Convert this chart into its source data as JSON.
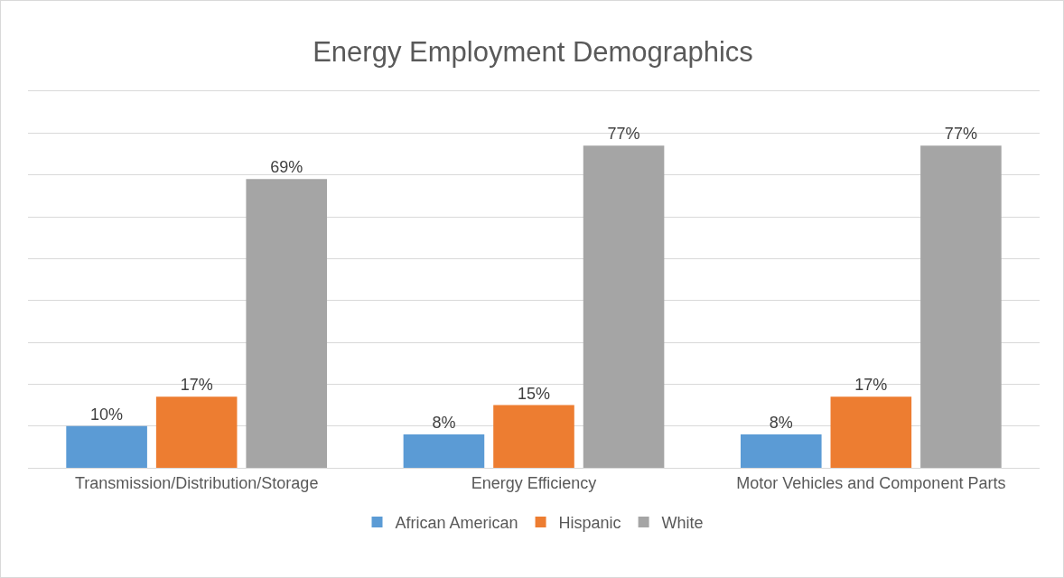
{
  "chart_data": {
    "type": "bar",
    "title": "Energy Employment Demographics",
    "categories": [
      "Transmission/Distribution/Storage",
      "Energy Efficiency",
      "Motor Vehicles and Component Parts"
    ],
    "series": [
      {
        "name": "African American",
        "color": "#5b9bd5",
        "values": [
          10,
          8,
          8
        ],
        "value_labels": [
          "10%",
          "8%",
          "8%"
        ]
      },
      {
        "name": "Hispanic",
        "color": "#ed7d31",
        "values": [
          17,
          15,
          17
        ],
        "value_labels": [
          "17%",
          "15%",
          "17%"
        ]
      },
      {
        "name": "White",
        "color": "#a5a5a5",
        "values": [
          69,
          77,
          77
        ],
        "value_labels": [
          "69%",
          "77%",
          "77%"
        ]
      }
    ],
    "ylim": [
      0,
      90
    ],
    "yticks": [
      {
        "value": 0,
        "label": null
      },
      {
        "value": 10,
        "label": null
      },
      {
        "value": 20,
        "label": null
      },
      {
        "value": 30,
        "label": null
      },
      {
        "value": 40,
        "label": null
      },
      {
        "value": 50,
        "label": null
      },
      {
        "value": 60,
        "label": null
      },
      {
        "value": 70,
        "label": null
      },
      {
        "value": 80,
        "label": null
      },
      {
        "value": 90,
        "label": null
      }
    ],
    "grid": "y",
    "legend": "bottom",
    "tick_labels": "x"
  }
}
